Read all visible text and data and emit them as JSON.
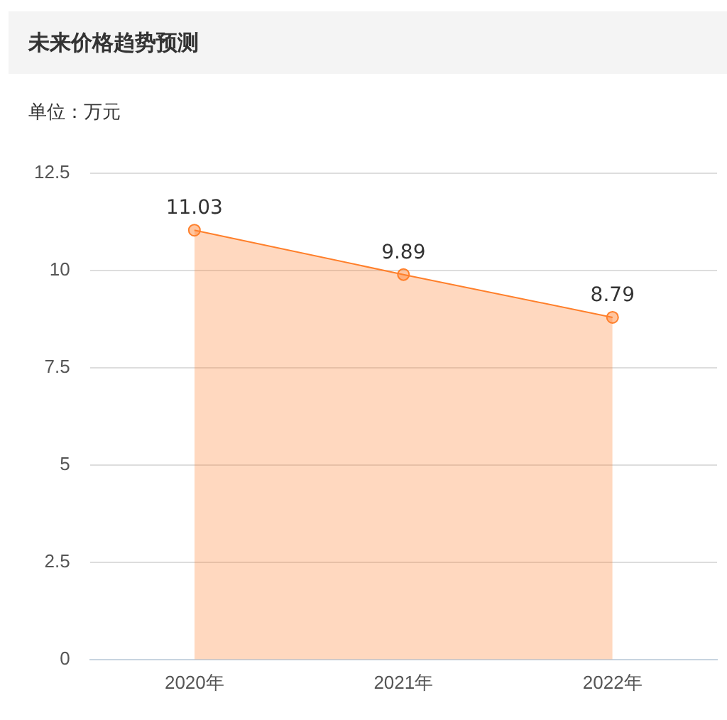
{
  "chart_data": {
    "type": "area",
    "title": "未来价格趋势预测",
    "ylabel": "单位：万元",
    "categories": [
      "2020年",
      "2021年",
      "2022年"
    ],
    "series": [
      {
        "color": "#ff7f2a",
        "values": [
          11.03,
          9.89,
          8.79
        ]
      }
    ],
    "ylim": [
      0,
      12.5
    ],
    "yticks": [
      0,
      2.5,
      5,
      7.5,
      10,
      12.5
    ],
    "grid": "y",
    "legend": false,
    "marker": "circle",
    "data_labels": true
  }
}
